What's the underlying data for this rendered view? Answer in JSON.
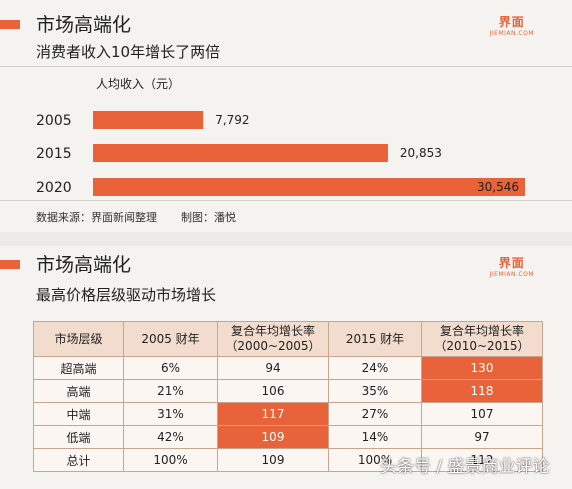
{
  "top": {
    "title": "市场高端化",
    "subtitle": "消费者收入10年增长了两倍",
    "brand": {
      "mark": "界面",
      "site": "JIEMIAN.COM"
    },
    "footer": {
      "source": "数据来源：界面新闻整理",
      "credit": "制图：潘悦"
    }
  },
  "bottom": {
    "title": "市场高端化",
    "subtitle": "最高价格层级驱动市场增长",
    "brand": {
      "mark": "界面",
      "site": "JIEMIAN.COM"
    }
  },
  "chart_data": [
    {
      "type": "bar",
      "orientation": "horizontal",
      "title": "消费者收入10年增长了两倍",
      "xlabel": "人均收入（元）",
      "categories": [
        "2005",
        "2015",
        "2020"
      ],
      "values": [
        7792,
        20853,
        30546
      ],
      "value_labels": [
        "7,792",
        "20,853",
        "30,546"
      ],
      "xlim": [
        0,
        30546
      ],
      "bar_color": "#e8633a"
    },
    {
      "type": "table",
      "title": "最高价格层级驱动市场增长",
      "columns": [
        "市场层级",
        "2005 财年",
        "复合年均增长率（2000~2005）",
        "2015 财年",
        "复合年均增长率（2010~2015）"
      ],
      "header_lines": [
        [
          "市场层级"
        ],
        [
          "2005 财年"
        ],
        [
          "复合年均增长率",
          "（2000~2005）"
        ],
        [
          "2015 财年"
        ],
        [
          "复合年均增长率",
          "（2010~2015）"
        ]
      ],
      "rows": [
        [
          "超高端",
          "6%",
          "94",
          "24%",
          "130"
        ],
        [
          "高端",
          "21%",
          "106",
          "35%",
          "118"
        ],
        [
          "中端",
          "31%",
          "117",
          "27%",
          "107"
        ],
        [
          "低端",
          "42%",
          "109",
          "14%",
          "97"
        ],
        [
          "总计",
          "100%",
          "109",
          "100%",
          "112"
        ]
      ],
      "highlight_color": "#e8633a"
    }
  ],
  "watermark": "头条号 / 盛景商业评论"
}
